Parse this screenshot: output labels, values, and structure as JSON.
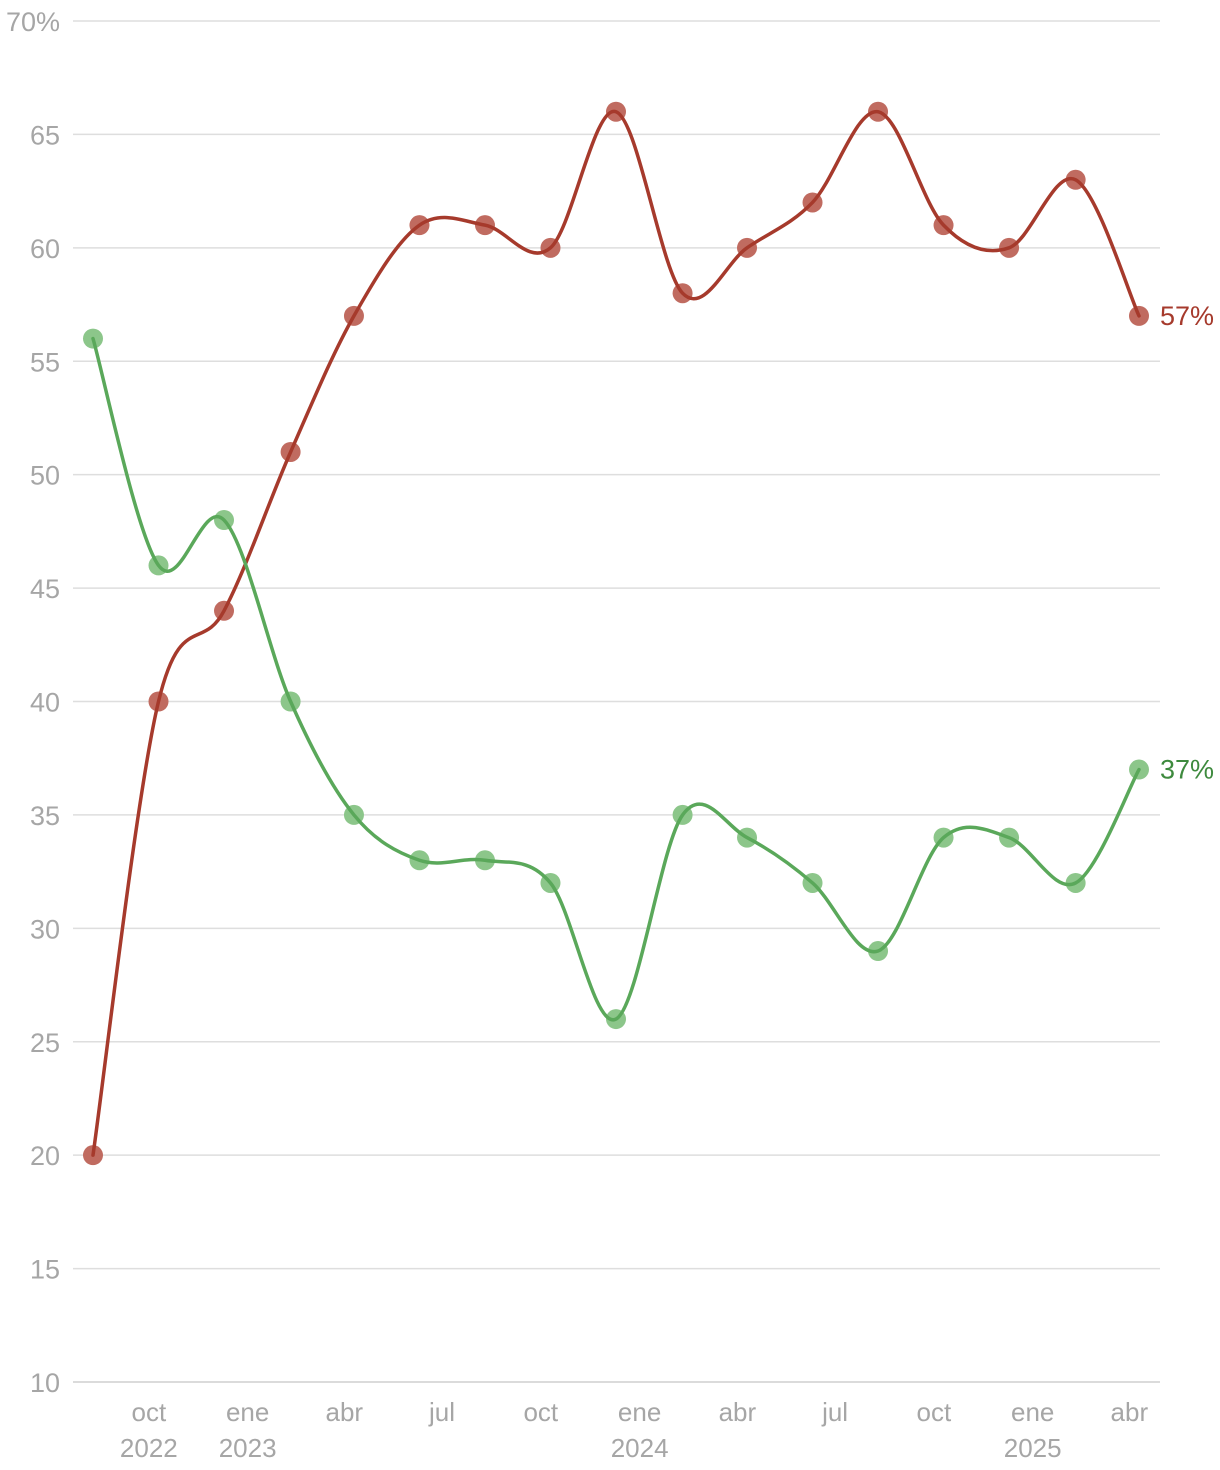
{
  "chart_data": {
    "type": "line",
    "title": "",
    "xlabel": "",
    "ylabel": "",
    "ylim": [
      10,
      70
    ],
    "y_ticks": [
      {
        "value": 70,
        "label": "70%"
      },
      {
        "value": 65,
        "label": "65"
      },
      {
        "value": 60,
        "label": "60"
      },
      {
        "value": 55,
        "label": "55"
      },
      {
        "value": 50,
        "label": "50"
      },
      {
        "value": 45,
        "label": "45"
      },
      {
        "value": 40,
        "label": "40"
      },
      {
        "value": 35,
        "label": "35"
      },
      {
        "value": 30,
        "label": "30"
      },
      {
        "value": 25,
        "label": "25"
      },
      {
        "value": 20,
        "label": "20"
      },
      {
        "value": 15,
        "label": "15"
      },
      {
        "value": 10,
        "label": "10"
      }
    ],
    "x_ticks": [
      {
        "date": "2022-10",
        "label": "oct",
        "year": "2022"
      },
      {
        "date": "2023-01",
        "label": "ene",
        "year": "2023"
      },
      {
        "date": "2023-04",
        "label": "abr",
        "year": ""
      },
      {
        "date": "2023-07",
        "label": "jul",
        "year": ""
      },
      {
        "date": "2023-10",
        "label": "oct",
        "year": ""
      },
      {
        "date": "2024-01",
        "label": "ene",
        "year": "2024"
      },
      {
        "date": "2024-04",
        "label": "abr",
        "year": ""
      },
      {
        "date": "2024-07",
        "label": "jul",
        "year": ""
      },
      {
        "date": "2024-10",
        "label": "oct",
        "year": ""
      },
      {
        "date": "2025-01",
        "label": "ene",
        "year": "2025"
      },
      {
        "date": "2025-04",
        "label": "abr",
        "year": ""
      }
    ],
    "x": [
      "2022-08-10",
      "2022-10-10",
      "2022-12-10",
      "2023-02-10",
      "2023-04-10",
      "2023-06-10",
      "2023-08-10",
      "2023-10-10",
      "2023-12-10",
      "2024-02-10",
      "2024-04-10",
      "2024-06-10",
      "2024-08-10",
      "2024-10-10",
      "2024-12-10",
      "2025-02-10",
      "2025-04-10"
    ],
    "series": [
      {
        "color": "#a63a2c",
        "dot_color": "#c06b60",
        "values": [
          20,
          40,
          44,
          51,
          57,
          61,
          61,
          60,
          66,
          58,
          60,
          62,
          66,
          61,
          60,
          63,
          57
        ],
        "end_label": "57%"
      },
      {
        "color": "#5aa85a",
        "dot_color": "#8cc68a",
        "label_color": "#3e8a3e",
        "values": [
          56,
          46,
          48,
          40,
          35,
          33,
          33,
          32,
          26,
          35,
          34,
          32,
          29,
          34,
          34,
          32,
          37
        ],
        "end_label": "37%"
      }
    ],
    "grid": true,
    "legend": "none"
  }
}
